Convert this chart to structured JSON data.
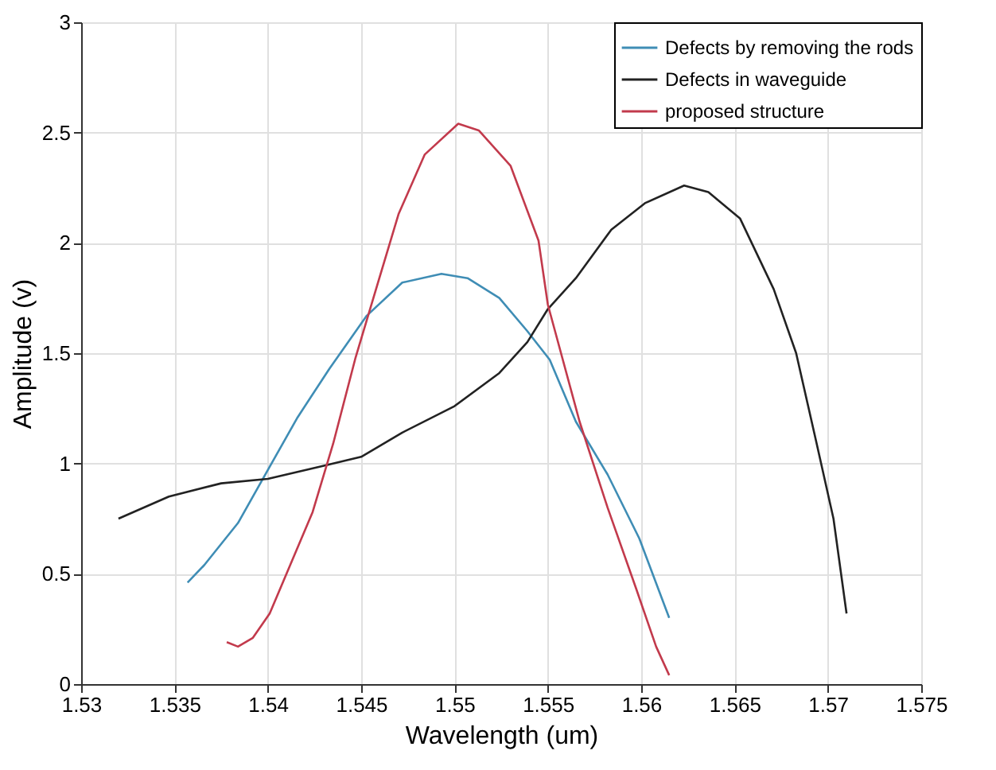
{
  "chart_data": {
    "type": "line",
    "xlabel": "Wavelength (um)",
    "ylabel": "Amplitude (v)",
    "xlim": [
      1.53,
      1.575
    ],
    "xticks": [
      1.53,
      1.535,
      1.54,
      1.545,
      1.55,
      1.555,
      1.56,
      1.565,
      1.57,
      1.575
    ],
    "ylim": [
      0,
      3
    ],
    "yticks": [
      0,
      0.5,
      1,
      1.5,
      2,
      2.5,
      3
    ],
    "grid": true,
    "legend": "top right",
    "line_style": "solid",
    "marker": "none",
    "series": [
      {
        "name": "Defects by removing the rods",
        "color": "#3f8db5",
        "x": [
          1.5357,
          1.5366,
          1.5384,
          1.54,
          1.5416,
          1.5433,
          1.5453,
          1.5472,
          1.5493,
          1.5507,
          1.5524,
          1.5539,
          1.5551,
          1.5565,
          1.5582,
          1.5599,
          1.5615
        ],
        "values": [
          0.46,
          0.54,
          0.73,
          0.97,
          1.21,
          1.43,
          1.67,
          1.82,
          1.86,
          1.84,
          1.75,
          1.6,
          1.47,
          1.19,
          0.95,
          0.66,
          0.3
        ]
      },
      {
        "name": "Defects in waveguide",
        "color": "#222222",
        "x": [
          1.532,
          1.5347,
          1.5375,
          1.54,
          1.543,
          1.545,
          1.5472,
          1.55,
          1.5524,
          1.5539,
          1.555,
          1.5565,
          1.5584,
          1.5602,
          1.5623,
          1.5636,
          1.5653,
          1.5671,
          1.5683,
          1.5694,
          1.5703,
          1.571
        ],
        "values": [
          0.75,
          0.85,
          0.91,
          0.93,
          0.99,
          1.03,
          1.14,
          1.26,
          1.41,
          1.55,
          1.7,
          1.84,
          2.06,
          2.18,
          2.26,
          2.23,
          2.11,
          1.79,
          1.5,
          1.09,
          0.75,
          0.32
        ]
      },
      {
        "name": "proposed structure",
        "color": "#c23a4c",
        "x": [
          1.5378,
          1.5384,
          1.5392,
          1.5401,
          1.5412,
          1.5424,
          1.5435,
          1.5447,
          1.5459,
          1.547,
          1.5484,
          1.5502,
          1.5513,
          1.553,
          1.5545,
          1.555,
          1.5567,
          1.5582,
          1.5597,
          1.5608,
          1.5615
        ],
        "values": [
          0.19,
          0.17,
          0.21,
          0.32,
          0.54,
          0.78,
          1.09,
          1.48,
          1.82,
          2.13,
          2.4,
          2.54,
          2.51,
          2.35,
          2.01,
          1.72,
          1.19,
          0.8,
          0.44,
          0.17,
          0.04
        ]
      }
    ]
  }
}
